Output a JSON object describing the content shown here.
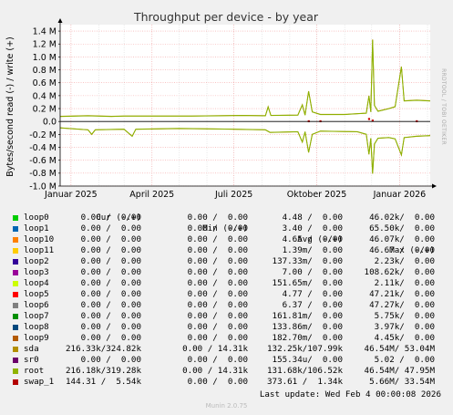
{
  "chart_data": {
    "type": "line",
    "title": "Throughput per device - by year",
    "ylabel": "Bytes/second read (-) / write (+)",
    "ylim": [
      -1000000,
      1500000
    ],
    "y_ticks": [
      {
        "v": 1400000,
        "label": "1.4 M"
      },
      {
        "v": 1200000,
        "label": "1.2 M"
      },
      {
        "v": 1000000,
        "label": "1.0 M"
      },
      {
        "v": 800000,
        "label": "0.8 M"
      },
      {
        "v": 600000,
        "label": "0.6 M"
      },
      {
        "v": 400000,
        "label": "0.4 M"
      },
      {
        "v": 200000,
        "label": "0.2 M"
      },
      {
        "v": 0,
        "label": "0.0"
      },
      {
        "v": -200000,
        "label": "-0.2 M"
      },
      {
        "v": -400000,
        "label": "-0.4 M"
      },
      {
        "v": -600000,
        "label": "-0.6 M"
      },
      {
        "v": -800000,
        "label": "-0.8 M"
      },
      {
        "v": -1000000,
        "label": "-1.0 M"
      }
    ],
    "x_range": [
      "2024-12-20",
      "2026-02-04"
    ],
    "x_ticks": [
      {
        "d": "2025-01-01",
        "label": "Januar 2025"
      },
      {
        "d": "2025-04-01",
        "label": "April 2025"
      },
      {
        "d": "2025-07-01",
        "label": "Juli 2025"
      },
      {
        "d": "2025-10-01",
        "label": "Oktober 2025"
      },
      {
        "d": "2026-01-01",
        "label": "Januar 2026"
      }
    ],
    "grid": true,
    "series": [
      {
        "name": "sda",
        "color": "#b89400",
        "write": [
          [
            "2024-12-20",
            80000
          ],
          [
            "2025-01-20",
            90000
          ],
          [
            "2025-02-15",
            80000
          ],
          [
            "2025-03-01",
            85000
          ],
          [
            "2025-04-01",
            85000
          ],
          [
            "2025-05-15",
            85000
          ],
          [
            "2025-06-15",
            90000
          ],
          [
            "2025-07-10",
            95000
          ],
          [
            "2025-08-05",
            90000
          ],
          [
            "2025-08-08",
            230000
          ],
          [
            "2025-08-11",
            95000
          ],
          [
            "2025-09-10",
            100000
          ],
          [
            "2025-09-15",
            260000
          ],
          [
            "2025-09-18",
            100000
          ],
          [
            "2025-09-22",
            470000
          ],
          [
            "2025-09-26",
            150000
          ],
          [
            "2025-10-05",
            110000
          ],
          [
            "2025-11-01",
            110000
          ],
          [
            "2025-11-25",
            130000
          ],
          [
            "2025-11-28",
            400000
          ],
          [
            "2025-11-30",
            150000
          ],
          [
            "2025-12-02",
            1270000
          ],
          [
            "2025-12-04",
            250000
          ],
          [
            "2025-12-08",
            160000
          ],
          [
            "2025-12-20",
            200000
          ],
          [
            "2025-12-27",
            230000
          ],
          [
            "2026-01-03",
            850000
          ],
          [
            "2026-01-06",
            320000
          ],
          [
            "2026-01-20",
            330000
          ],
          [
            "2026-02-04",
            320000
          ]
        ],
        "read": [
          [
            "2024-12-20",
            -100000
          ],
          [
            "2025-01-20",
            -130000
          ],
          [
            "2025-01-24",
            -200000
          ],
          [
            "2025-01-28",
            -130000
          ],
          [
            "2025-03-01",
            -120000
          ],
          [
            "2025-03-10",
            -230000
          ],
          [
            "2025-03-14",
            -120000
          ],
          [
            "2025-05-01",
            -110000
          ],
          [
            "2025-07-01",
            -120000
          ],
          [
            "2025-08-05",
            -130000
          ],
          [
            "2025-08-10",
            -170000
          ],
          [
            "2025-09-10",
            -160000
          ],
          [
            "2025-09-15",
            -320000
          ],
          [
            "2025-09-18",
            -160000
          ],
          [
            "2025-09-22",
            -480000
          ],
          [
            "2025-09-26",
            -200000
          ],
          [
            "2025-10-05",
            -150000
          ],
          [
            "2025-11-15",
            -160000
          ],
          [
            "2025-11-25",
            -200000
          ],
          [
            "2025-11-28",
            -510000
          ],
          [
            "2025-11-30",
            -260000
          ],
          [
            "2025-12-02",
            -810000
          ],
          [
            "2025-12-04",
            -350000
          ],
          [
            "2025-12-08",
            -260000
          ],
          [
            "2025-12-20",
            -250000
          ],
          [
            "2025-12-27",
            -270000
          ],
          [
            "2026-01-03",
            -520000
          ],
          [
            "2026-01-06",
            -250000
          ],
          [
            "2026-01-20",
            -230000
          ],
          [
            "2026-02-04",
            -220000
          ]
        ]
      },
      {
        "name": "root",
        "color": "#8ab200",
        "write": [
          [
            "2024-12-20",
            78000
          ],
          [
            "2025-01-20",
            88000
          ],
          [
            "2025-02-15",
            78000
          ],
          [
            "2025-03-01",
            83000
          ],
          [
            "2025-04-01",
            83000
          ],
          [
            "2025-05-15",
            83000
          ],
          [
            "2025-06-15",
            88000
          ],
          [
            "2025-07-10",
            93000
          ],
          [
            "2025-08-05",
            88000
          ],
          [
            "2025-08-08",
            225000
          ],
          [
            "2025-08-11",
            93000
          ],
          [
            "2025-09-10",
            98000
          ],
          [
            "2025-09-15",
            255000
          ],
          [
            "2025-09-18",
            98000
          ],
          [
            "2025-09-22",
            465000
          ],
          [
            "2025-09-26",
            148000
          ],
          [
            "2025-10-05",
            108000
          ],
          [
            "2025-11-01",
            108000
          ],
          [
            "2025-11-25",
            128000
          ],
          [
            "2025-11-28",
            395000
          ],
          [
            "2025-11-30",
            148000
          ],
          [
            "2025-12-02",
            1260000
          ],
          [
            "2025-12-04",
            248000
          ],
          [
            "2025-12-08",
            158000
          ],
          [
            "2025-12-20",
            198000
          ],
          [
            "2025-12-27",
            228000
          ],
          [
            "2026-01-03",
            845000
          ],
          [
            "2026-01-06",
            318000
          ],
          [
            "2026-01-20",
            328000
          ],
          [
            "2026-02-04",
            318000
          ]
        ],
        "read": [
          [
            "2024-12-20",
            -98000
          ],
          [
            "2025-01-20",
            -128000
          ],
          [
            "2025-01-24",
            -198000
          ],
          [
            "2025-01-28",
            -128000
          ],
          [
            "2025-03-01",
            -118000
          ],
          [
            "2025-03-10",
            -228000
          ],
          [
            "2025-03-14",
            -118000
          ],
          [
            "2025-05-01",
            -108000
          ],
          [
            "2025-07-01",
            -118000
          ],
          [
            "2025-08-05",
            -128000
          ],
          [
            "2025-08-10",
            -168000
          ],
          [
            "2025-09-10",
            -158000
          ],
          [
            "2025-09-15",
            -318000
          ],
          [
            "2025-09-18",
            -158000
          ],
          [
            "2025-09-22",
            -478000
          ],
          [
            "2025-09-26",
            -198000
          ],
          [
            "2025-10-05",
            -148000
          ],
          [
            "2025-11-15",
            -158000
          ],
          [
            "2025-11-25",
            -198000
          ],
          [
            "2025-11-28",
            -505000
          ],
          [
            "2025-11-30",
            -258000
          ],
          [
            "2025-12-02",
            -805000
          ],
          [
            "2025-12-04",
            -348000
          ],
          [
            "2025-12-08",
            -258000
          ],
          [
            "2025-12-20",
            -248000
          ],
          [
            "2025-12-27",
            -268000
          ],
          [
            "2026-01-03",
            -515000
          ],
          [
            "2026-01-06",
            -248000
          ],
          [
            "2026-01-20",
            -228000
          ],
          [
            "2026-02-04",
            -218000
          ]
        ]
      },
      {
        "name": "swap_1",
        "color": "#cc0000",
        "write": [
          [
            "2025-09-22",
            5000
          ],
          [
            "2025-10-05",
            5000
          ],
          [
            "2025-11-28",
            40000
          ],
          [
            "2025-12-02",
            15000
          ],
          [
            "2026-01-20",
            5000
          ]
        ],
        "read": []
      }
    ]
  },
  "legend": {
    "headers": {
      "cur": "Cur (-/+)",
      "min": "Min (-/+)",
      "avg": "Avg (-/+)",
      "max": "Max (-/+)"
    },
    "rows": [
      {
        "name": "loop0",
        "color": "#00cc00",
        "cur": "0.00 /  0.00",
        "min": "0.00 /  0.00",
        "avg": "4.48 /  0.00",
        "max": "46.02k/  0.00"
      },
      {
        "name": "loop1",
        "color": "#0066b3",
        "cur": "0.00 /  0.00",
        "min": "0.00 /  0.00",
        "avg": "3.40 /  0.00",
        "max": "65.50k/  0.00"
      },
      {
        "name": "loop10",
        "color": "#ff8000",
        "cur": "0.00 /  0.00",
        "min": "0.00 /  0.00",
        "avg": "4.65 /  0.00",
        "max": "46.07k/  0.00"
      },
      {
        "name": "loop11",
        "color": "#ffcc00",
        "cur": "0.00 /  0.00",
        "min": "0.00 /  0.00",
        "avg": "1.39m/  0.00",
        "max": "46.67 /  0.00"
      },
      {
        "name": "loop2",
        "color": "#330099",
        "cur": "0.00 /  0.00",
        "min": "0.00 /  0.00",
        "avg": "137.33m/  0.00",
        "max": "2.23k/  0.00"
      },
      {
        "name": "loop3",
        "color": "#990099",
        "cur": "0.00 /  0.00",
        "min": "0.00 /  0.00",
        "avg": "7.00 /  0.00",
        "max": "108.62k/  0.00"
      },
      {
        "name": "loop4",
        "color": "#ccff00",
        "cur": "0.00 /  0.00",
        "min": "0.00 /  0.00",
        "avg": "151.65m/  0.00",
        "max": "2.11k/  0.00"
      },
      {
        "name": "loop5",
        "color": "#ff0000",
        "cur": "0.00 /  0.00",
        "min": "0.00 /  0.00",
        "avg": "4.77 /  0.00",
        "max": "47.21k/  0.00"
      },
      {
        "name": "loop6",
        "color": "#808080",
        "cur": "0.00 /  0.00",
        "min": "0.00 /  0.00",
        "avg": "6.37 /  0.00",
        "max": "47.27k/  0.00"
      },
      {
        "name": "loop7",
        "color": "#008f00",
        "cur": "0.00 /  0.00",
        "min": "0.00 /  0.00",
        "avg": "161.81m/  0.00",
        "max": "5.75k/  0.00"
      },
      {
        "name": "loop8",
        "color": "#00487d",
        "cur": "0.00 /  0.00",
        "min": "0.00 /  0.00",
        "avg": "133.86m/  0.00",
        "max": "3.97k/  0.00"
      },
      {
        "name": "loop9",
        "color": "#b35a00",
        "cur": "0.00 /  0.00",
        "min": "0.00 /  0.00",
        "avg": "182.70m/  0.00",
        "max": "4.45k/  0.00"
      },
      {
        "name": "sda",
        "color": "#b38f00",
        "cur": "216.33k/324.82k",
        "min": "0.00 / 14.31k",
        "avg": "132.25k/107.99k",
        "max": "46.54M/ 53.04M"
      },
      {
        "name": "sr0",
        "color": "#6b006b",
        "cur": "0.00 /  0.00",
        "min": "0.00 /  0.00",
        "avg": "155.34u/  0.00",
        "max": "5.02 /  0.00"
      },
      {
        "name": "root",
        "color": "#8fb300",
        "cur": "216.18k/319.28k",
        "min": "0.00 / 14.31k",
        "avg": "131.68k/106.52k",
        "max": "46.54M/ 47.95M"
      },
      {
        "name": "swap_1",
        "color": "#b30000",
        "cur": "144.31 /  5.54k",
        "min": "0.00 /  0.00",
        "avg": "373.61 /  1.34k",
        "max": "5.66M/ 33.54M"
      }
    ]
  },
  "last_update": "Last update: Wed Feb  4 00:00:08 2026",
  "watermark": "RRDTOOL / TOBI OETIKER",
  "munin_version": "Munin 2.0.75"
}
